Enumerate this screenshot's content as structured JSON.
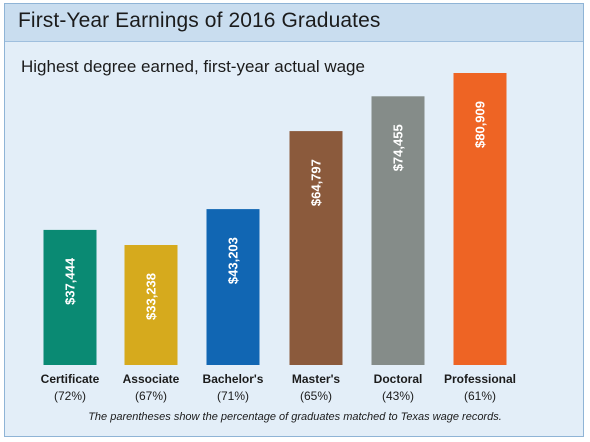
{
  "chart_data": {
    "type": "bar",
    "title": "First-Year Earnings of 2016 Graduates",
    "subtitle": "Highest degree earned, first-year actual wage",
    "categories": [
      "Certificate",
      "Associate",
      "Bachelor's",
      "Master's",
      "Doctoral",
      "Professional"
    ],
    "category_notes": [
      "(72%)",
      "(67%)",
      "(71%)",
      "(65%)",
      "(43%)",
      "(61%)"
    ],
    "values": [
      37444,
      33238,
      43203,
      64797,
      74455,
      80909
    ],
    "value_labels": [
      "$37,444",
      "$33,238",
      "$43,203",
      "$64,797",
      "$74,455",
      "$80,909"
    ],
    "colors": [
      "#0a8a73",
      "#d6aa1d",
      "#1166b3",
      "#8b5a3c",
      "#858c89",
      "#ee6424"
    ],
    "ylim": [
      0,
      80909
    ],
    "grid": false,
    "legend": "none",
    "footnote": "The parentheses show the percentage of graduates matched to Texas wage records."
  }
}
